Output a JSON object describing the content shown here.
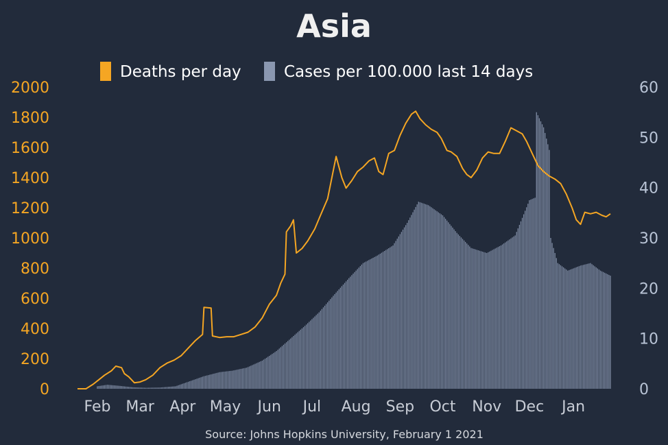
{
  "chart_data": {
    "type": "bar+line",
    "title": "Asia",
    "source": "Source: Johns Hopkins University, February 1 2021",
    "legend": [
      {
        "label": "Deaths per day",
        "color": "#f5a623",
        "kind": "line"
      },
      {
        "label": "Cases per 100.000 last 14 days",
        "color": "#8a97b0",
        "kind": "bar"
      }
    ],
    "legend_position": "top-center",
    "grid": false,
    "x_months": [
      "Feb",
      "Mar",
      "Apr",
      "May",
      "Jun",
      "Jul",
      "Aug",
      "Sep",
      "Oct",
      "Nov",
      "Dec",
      "Jan"
    ],
    "y_left": {
      "range": [
        0,
        2000
      ],
      "ticks": [
        "0",
        "200",
        "400",
        "600",
        "800",
        "1000",
        "1200",
        "1400",
        "1600",
        "1800",
        "2000"
      ]
    },
    "y_right": {
      "range": [
        0,
        60
      ],
      "ticks": [
        "0",
        "10",
        "20",
        "30",
        "40",
        "50",
        "60"
      ]
    },
    "deaths_per_day": {
      "name": "Deaths per day",
      "color": "#f5a623",
      "points": [
        [
          "2020-01-22",
          0
        ],
        [
          "2020-01-28",
          0
        ],
        [
          "2020-02-02",
          30
        ],
        [
          "2020-02-06",
          60
        ],
        [
          "2020-02-10",
          90
        ],
        [
          "2020-02-15",
          120
        ],
        [
          "2020-02-18",
          150
        ],
        [
          "2020-02-22",
          140
        ],
        [
          "2020-02-24",
          100
        ],
        [
          "2020-02-27",
          80
        ],
        [
          "2020-03-02",
          40
        ],
        [
          "2020-03-06",
          45
        ],
        [
          "2020-03-10",
          60
        ],
        [
          "2020-03-15",
          90
        ],
        [
          "2020-03-20",
          140
        ],
        [
          "2020-03-25",
          170
        ],
        [
          "2020-03-30",
          190
        ],
        [
          "2020-04-04",
          220
        ],
        [
          "2020-04-09",
          270
        ],
        [
          "2020-04-14",
          320
        ],
        [
          "2020-04-19",
          360
        ],
        [
          "2020-04-20",
          540
        ],
        [
          "2020-04-25",
          535
        ],
        [
          "2020-04-26",
          350
        ],
        [
          "2020-05-01",
          340
        ],
        [
          "2020-05-06",
          345
        ],
        [
          "2020-05-11",
          345
        ],
        [
          "2020-05-16",
          360
        ],
        [
          "2020-05-21",
          375
        ],
        [
          "2020-05-26",
          410
        ],
        [
          "2020-05-31",
          470
        ],
        [
          "2020-06-05",
          560
        ],
        [
          "2020-06-10",
          620
        ],
        [
          "2020-06-13",
          700
        ],
        [
          "2020-06-16",
          760
        ],
        [
          "2020-06-17",
          1040
        ],
        [
          "2020-06-20",
          1080
        ],
        [
          "2020-06-22",
          1120
        ],
        [
          "2020-06-24",
          900
        ],
        [
          "2020-06-28",
          930
        ],
        [
          "2020-07-02",
          980
        ],
        [
          "2020-07-07",
          1060
        ],
        [
          "2020-07-11",
          1150
        ],
        [
          "2020-07-16",
          1260
        ],
        [
          "2020-07-19",
          1400
        ],
        [
          "2020-07-22",
          1540
        ],
        [
          "2020-07-26",
          1400
        ],
        [
          "2020-07-29",
          1330
        ],
        [
          "2020-08-02",
          1380
        ],
        [
          "2020-08-06",
          1440
        ],
        [
          "2020-08-10",
          1470
        ],
        [
          "2020-08-14",
          1510
        ],
        [
          "2020-08-18",
          1530
        ],
        [
          "2020-08-21",
          1440
        ],
        [
          "2020-08-24",
          1420
        ],
        [
          "2020-08-28",
          1560
        ],
        [
          "2020-09-01",
          1580
        ],
        [
          "2020-09-05",
          1680
        ],
        [
          "2020-09-09",
          1760
        ],
        [
          "2020-09-13",
          1820
        ],
        [
          "2020-09-16",
          1840
        ],
        [
          "2020-09-19",
          1790
        ],
        [
          "2020-09-23",
          1750
        ],
        [
          "2020-09-27",
          1720
        ],
        [
          "2020-10-01",
          1700
        ],
        [
          "2020-10-04",
          1660
        ],
        [
          "2020-10-08",
          1580
        ],
        [
          "2020-10-11",
          1570
        ],
        [
          "2020-10-15",
          1540
        ],
        [
          "2020-10-19",
          1460
        ],
        [
          "2020-10-22",
          1420
        ],
        [
          "2020-10-25",
          1400
        ],
        [
          "2020-10-29",
          1450
        ],
        [
          "2020-11-02",
          1530
        ],
        [
          "2020-11-06",
          1570
        ],
        [
          "2020-11-10",
          1560
        ],
        [
          "2020-11-14",
          1560
        ],
        [
          "2020-11-18",
          1640
        ],
        [
          "2020-11-22",
          1730
        ],
        [
          "2020-11-26",
          1710
        ],
        [
          "2020-11-30",
          1690
        ],
        [
          "2020-12-03",
          1640
        ],
        [
          "2020-12-07",
          1560
        ],
        [
          "2020-12-11",
          1480
        ],
        [
          "2020-12-15",
          1440
        ],
        [
          "2020-12-19",
          1410
        ],
        [
          "2020-12-23",
          1390
        ],
        [
          "2020-12-27",
          1360
        ],
        [
          "2020-12-31",
          1290
        ],
        [
          "2021-01-04",
          1200
        ],
        [
          "2021-01-07",
          1120
        ],
        [
          "2021-01-10",
          1090
        ],
        [
          "2021-01-13",
          1170
        ],
        [
          "2021-01-17",
          1160
        ],
        [
          "2021-01-21",
          1170
        ],
        [
          "2021-01-25",
          1150
        ],
        [
          "2021-01-28",
          1140
        ],
        [
          "2021-01-31",
          1160
        ]
      ]
    },
    "cases_per_100000_last_14_days": {
      "name": "Cases per 100.000 last 14 days",
      "color": "#8a97b0",
      "points": [
        [
          "2020-02-05",
          0.5
        ],
        [
          "2020-02-12",
          0.8
        ],
        [
          "2020-02-20",
          0.6
        ],
        [
          "2020-03-01",
          0.3
        ],
        [
          "2020-03-10",
          0.2
        ],
        [
          "2020-03-20",
          0.25
        ],
        [
          "2020-03-31",
          0.5
        ],
        [
          "2020-04-10",
          1.5
        ],
        [
          "2020-04-20",
          2.5
        ],
        [
          "2020-05-01",
          3.3
        ],
        [
          "2020-05-10",
          3.6
        ],
        [
          "2020-05-20",
          4.2
        ],
        [
          "2020-05-31",
          5.6
        ],
        [
          "2020-06-10",
          7.5
        ],
        [
          "2020-06-20",
          10.0
        ],
        [
          "2020-06-30",
          12.5
        ],
        [
          "2020-07-10",
          15.2
        ],
        [
          "2020-07-20",
          18.5
        ],
        [
          "2020-07-31",
          22.0
        ],
        [
          "2020-08-10",
          25.0
        ],
        [
          "2020-08-20",
          26.5
        ],
        [
          "2020-08-31",
          28.5
        ],
        [
          "2020-09-10",
          33.0
        ],
        [
          "2020-09-18",
          37.2
        ],
        [
          "2020-09-25",
          36.5
        ],
        [
          "2020-10-05",
          34.5
        ],
        [
          "2020-10-15",
          31.0
        ],
        [
          "2020-10-25",
          28.0
        ],
        [
          "2020-11-05",
          27.0
        ],
        [
          "2020-11-15",
          28.5
        ],
        [
          "2020-11-25",
          30.5
        ],
        [
          "2020-12-05",
          37.5
        ],
        [
          "2020-12-09",
          38.0
        ],
        [
          "2020-12-10",
          55.0
        ],
        [
          "2020-12-15",
          52.0
        ],
        [
          "2020-12-19",
          47.5
        ],
        [
          "2020-12-20",
          30.0
        ],
        [
          "2020-12-25",
          25.0
        ],
        [
          "2021-01-01",
          23.5
        ],
        [
          "2021-01-10",
          24.5
        ],
        [
          "2021-01-17",
          25.0
        ],
        [
          "2021-01-24",
          23.5
        ],
        [
          "2021-01-31",
          22.5
        ]
      ]
    }
  }
}
